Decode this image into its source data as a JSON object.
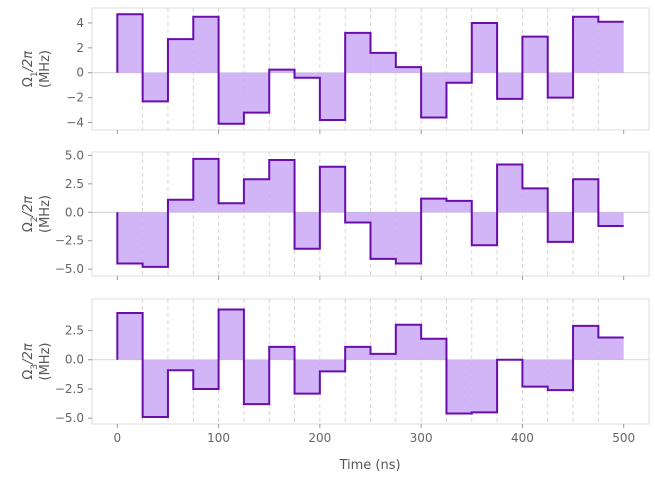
{
  "colors": {
    "accent": "#6a0dad",
    "fill": "#c9a8f5",
    "grid": "#cccccc",
    "axes": "#dddddd",
    "text": "#666666"
  },
  "chart_data": [
    {
      "type": "step",
      "ylabel": "Ω1/2π (MHz)",
      "ylabel_parts": {
        "prefix": "Ω",
        "sub": "1",
        "suffix": "/2π",
        "unit": "(MHz)"
      },
      "ylim": [
        -4.6,
        5.2
      ],
      "yticks": [
        -4,
        -2,
        0,
        2,
        4
      ],
      "ytick_labels": [
        "−4",
        "−2",
        "0",
        "2",
        "4"
      ],
      "x": [
        0,
        25,
        50,
        75,
        100,
        125,
        150,
        175,
        200,
        225,
        250,
        275,
        300,
        325,
        350,
        375,
        400,
        425,
        450,
        475
      ],
      "values": [
        4.7,
        -2.3,
        2.7,
        4.5,
        -4.1,
        -3.2,
        0.25,
        -0.4,
        -3.8,
        3.2,
        1.6,
        0.45,
        -3.6,
        -0.8,
        4.0,
        -2.1,
        2.9,
        -2.0,
        4.5,
        4.1
      ]
    },
    {
      "type": "step",
      "ylabel": "Ω2/2π (MHz)",
      "ylabel_parts": {
        "prefix": "Ω",
        "sub": "2",
        "suffix": "/2π",
        "unit": "(MHz)"
      },
      "ylim": [
        -5.6,
        5.3
      ],
      "yticks": [
        -5.0,
        -2.5,
        0.0,
        2.5,
        5.0
      ],
      "ytick_labels": [
        "−5.0",
        "−2.5",
        "0.0",
        "2.5",
        "5.0"
      ],
      "x": [
        0,
        25,
        50,
        75,
        100,
        125,
        150,
        175,
        200,
        225,
        250,
        275,
        300,
        325,
        350,
        375,
        400,
        425,
        450,
        475
      ],
      "values": [
        -4.5,
        -4.8,
        1.1,
        4.7,
        0.8,
        2.9,
        4.6,
        -3.2,
        4.0,
        -0.9,
        -4.1,
        -4.5,
        1.2,
        1.0,
        -2.9,
        4.2,
        2.1,
        -2.6,
        2.9,
        -1.2
      ]
    },
    {
      "type": "step",
      "ylabel": "Ω3/2π (MHz)",
      "ylabel_parts": {
        "prefix": "Ω",
        "sub": "3",
        "suffix": "/2π",
        "unit": "(MHz)"
      },
      "ylim": [
        -5.5,
        5.2
      ],
      "yticks": [
        -5.0,
        -2.5,
        0.0,
        2.5
      ],
      "ytick_labels": [
        "−5.0",
        "−2.5",
        "0.0",
        "2.5"
      ],
      "x": [
        0,
        25,
        50,
        75,
        100,
        125,
        150,
        175,
        200,
        225,
        250,
        275,
        300,
        325,
        350,
        375,
        400,
        425,
        450,
        475
      ],
      "values": [
        4.0,
        -4.9,
        -0.9,
        -2.5,
        4.3,
        -3.8,
        1.1,
        -2.9,
        -1.0,
        1.1,
        0.5,
        3.0,
        1.8,
        -4.6,
        -4.5,
        0.0,
        -2.3,
        -2.6,
        2.9,
        1.9
      ]
    }
  ],
  "xaxis": {
    "label": "Time (ns)",
    "xlim": [
      -25,
      525
    ],
    "ticks": [
      0,
      100,
      200,
      300,
      400,
      500
    ],
    "tick_labels": [
      "0",
      "100",
      "200",
      "300",
      "400",
      "500"
    ],
    "segment_lines": [
      25,
      50,
      75,
      100,
      125,
      150,
      175,
      200,
      225,
      250,
      275,
      300,
      325,
      350,
      375,
      400,
      425,
      450,
      475
    ],
    "x_end": 500
  }
}
